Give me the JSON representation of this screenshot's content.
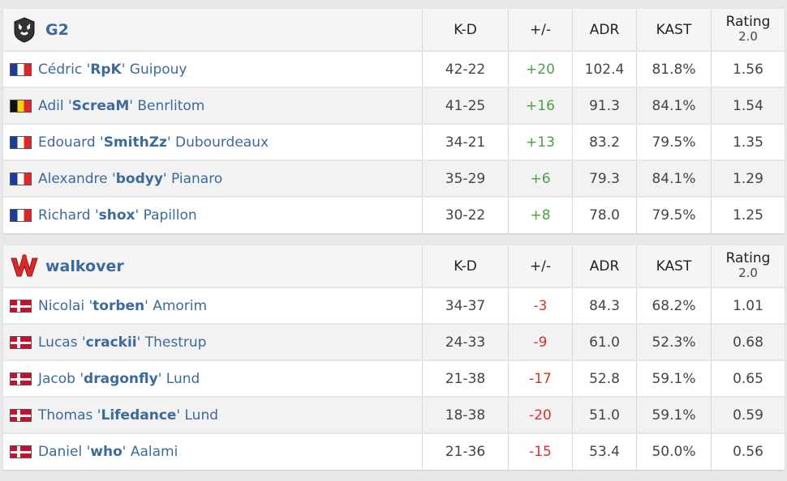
{
  "columns": {
    "kd": "K-D",
    "plusminus": "+/-",
    "adr": "ADR",
    "kast": "KAST",
    "rating": "Rating",
    "rating_sub": "2.0"
  },
  "colors": {
    "positive": "#4aa144",
    "negative": "#d8322d",
    "link": "#3c6a9c"
  },
  "teams": [
    {
      "name": "G2",
      "logo_icon": "g2-logo-icon",
      "players": [
        {
          "flag": "flag-france",
          "first": "Cédric '",
          "nick": "RpK",
          "last": "' Guipouy",
          "kd": "42-22",
          "pm": "+20",
          "adr": "102.4",
          "kast": "81.8%",
          "rating": "1.56"
        },
        {
          "flag": "flag-belgium",
          "first": "Adil '",
          "nick": "ScreaM",
          "last": "' Benrlitom",
          "kd": "41-25",
          "pm": "+16",
          "adr": "91.3",
          "kast": "84.1%",
          "rating": "1.54"
        },
        {
          "flag": "flag-france",
          "first": "Edouard '",
          "nick": "SmithZz",
          "last": "' Dubourdeaux",
          "kd": "34-21",
          "pm": "+13",
          "adr": "83.2",
          "kast": "79.5%",
          "rating": "1.35"
        },
        {
          "flag": "flag-france",
          "first": "Alexandre '",
          "nick": "bodyy",
          "last": "' Pianaro",
          "kd": "35-29",
          "pm": "+6",
          "adr": "79.3",
          "kast": "84.1%",
          "rating": "1.29"
        },
        {
          "flag": "flag-france",
          "first": "Richard '",
          "nick": "shox",
          "last": "' Papillon",
          "kd": "30-22",
          "pm": "+8",
          "adr": "78.0",
          "kast": "79.5%",
          "rating": "1.25"
        }
      ]
    },
    {
      "name": "walkover",
      "logo_icon": "walkover-logo-icon",
      "players": [
        {
          "flag": "flag-denmark",
          "first": "Nicolai '",
          "nick": "torben",
          "last": "' Amorim",
          "kd": "34-37",
          "pm": "-3",
          "adr": "84.3",
          "kast": "68.2%",
          "rating": "1.01"
        },
        {
          "flag": "flag-denmark",
          "first": "Lucas '",
          "nick": "crackii",
          "last": "' Thestrup",
          "kd": "24-33",
          "pm": "-9",
          "adr": "61.0",
          "kast": "52.3%",
          "rating": "0.68"
        },
        {
          "flag": "flag-denmark",
          "first": "Jacob '",
          "nick": "dragonfly",
          "last": "' Lund",
          "kd": "21-38",
          "pm": "-17",
          "adr": "52.8",
          "kast": "59.1%",
          "rating": "0.65"
        },
        {
          "flag": "flag-denmark",
          "first": "Thomas '",
          "nick": "Lifedance",
          "last": "' Lund",
          "kd": "18-38",
          "pm": "-20",
          "adr": "51.0",
          "kast": "59.1%",
          "rating": "0.59"
        },
        {
          "flag": "flag-denmark",
          "first": "Daniel '",
          "nick": "who",
          "last": "' Aalami",
          "kd": "21-36",
          "pm": "-15",
          "adr": "53.4",
          "kast": "50.0%",
          "rating": "0.56"
        }
      ]
    }
  ]
}
